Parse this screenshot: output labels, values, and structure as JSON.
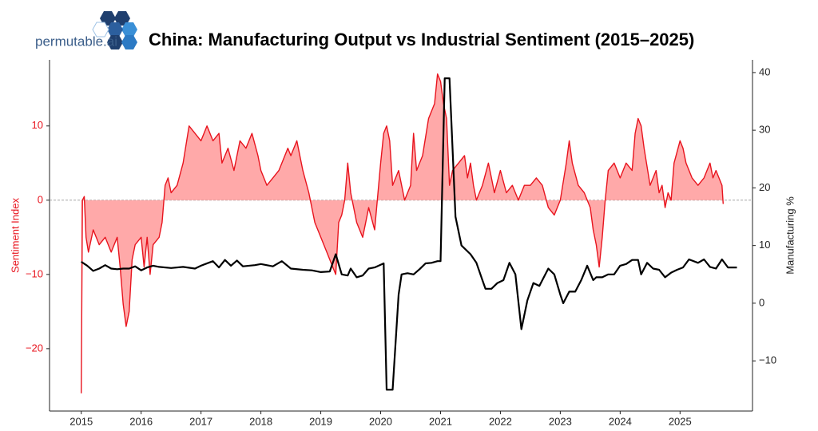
{
  "logo": "permutable.ai",
  "chart_data": {
    "type": "line",
    "title": "China: Manufacturing Output vs Industrial Sentiment (2015–2025)",
    "y_label": "Sentiment Index",
    "y2_label": "Manufacturing %",
    "xlim": [
      2014.47,
      2026.21
    ],
    "xticks": [
      2015,
      2016,
      2017,
      2018,
      2019,
      2020,
      2021,
      2022,
      2023,
      2024,
      2025
    ],
    "ylim": [
      -28.4,
      18.9
    ],
    "yticks": [
      {
        "value": -20,
        "label": "−20"
      },
      {
        "value": -10,
        "label": "−10"
      },
      0,
      10
    ],
    "y2lim": [
      -18.7,
      42.2
    ],
    "y2ticks": [
      {
        "value": -10,
        "label": "−10"
      },
      0,
      10,
      20,
      30,
      40
    ],
    "series": [
      {
        "name": "Sentiment Index",
        "color": "#e8141e",
        "fill": "#ff9a9a",
        "axis": "y",
        "x": [
          2015.0,
          2015.02,
          2015.05,
          2015.08,
          2015.12,
          2015.2,
          2015.3,
          2015.4,
          2015.5,
          2015.6,
          2015.65,
          2015.7,
          2015.75,
          2015.8,
          2015.85,
          2015.9,
          2016.0,
          2016.05,
          2016.1,
          2016.15,
          2016.2,
          2016.3,
          2016.35,
          2016.4,
          2016.45,
          2016.5,
          2016.6,
          2016.7,
          2016.8,
          2016.9,
          2017.0,
          2017.1,
          2017.2,
          2017.3,
          2017.35,
          2017.45,
          2017.55,
          2017.65,
          2017.75,
          2017.85,
          2017.95,
          2018.0,
          2018.1,
          2018.2,
          2018.3,
          2018.4,
          2018.45,
          2018.5,
          2018.6,
          2018.7,
          2018.8,
          2018.9,
          2019.0,
          2019.1,
          2019.2,
          2019.25,
          2019.3,
          2019.35,
          2019.4,
          2019.45,
          2019.5,
          2019.6,
          2019.7,
          2019.75,
          2019.8,
          2019.9,
          2020.0,
          2020.05,
          2020.1,
          2020.15,
          2020.2,
          2020.3,
          2020.4,
          2020.5,
          2020.55,
          2020.6,
          2020.7,
          2020.8,
          2020.9,
          2020.95,
          2021.0,
          2021.05,
          2021.1,
          2021.15,
          2021.2,
          2021.3,
          2021.4,
          2021.45,
          2021.5,
          2021.55,
          2021.6,
          2021.7,
          2021.8,
          2021.85,
          2021.9,
          2022.0,
          2022.1,
          2022.2,
          2022.3,
          2022.4,
          2022.5,
          2022.6,
          2022.7,
          2022.8,
          2022.9,
          2023.0,
          2023.1,
          2023.15,
          2023.2,
          2023.3,
          2023.4,
          2023.5,
          2023.55,
          2023.6,
          2023.65,
          2023.7,
          2023.75,
          2023.8,
          2023.9,
          2024.0,
          2024.1,
          2024.2,
          2024.25,
          2024.3,
          2024.35,
          2024.4,
          2024.5,
          2024.6,
          2024.65,
          2024.7,
          2024.75,
          2024.8,
          2024.85,
          2024.9,
          2025.0,
          2025.05,
          2025.1,
          2025.2,
          2025.3,
          2025.4,
          2025.5,
          2025.55,
          2025.6,
          2025.7,
          2025.72
        ],
        "values": [
          -26,
          0,
          0.5,
          -5,
          -7,
          -4,
          -6,
          -5,
          -7,
          -5,
          -9,
          -14,
          -17,
          -15,
          -8,
          -6,
          -5,
          -9,
          -5,
          -10,
          -6,
          -5,
          -3,
          2,
          3,
          1,
          2,
          5,
          10,
          9,
          8,
          10,
          8,
          9,
          5,
          7,
          4,
          8,
          7,
          9,
          6,
          4,
          2,
          3,
          4,
          6,
          7,
          6,
          8,
          4,
          1,
          -3,
          -5,
          -7,
          -9,
          -10,
          -3,
          -2,
          0,
          5,
          1,
          -3,
          -5,
          -3,
          -1,
          -4,
          5,
          9,
          10,
          8,
          2,
          4,
          0,
          2,
          9,
          4,
          6,
          11,
          13,
          17,
          16,
          13,
          11,
          2,
          4,
          5,
          6,
          3,
          5,
          2,
          0,
          2,
          5,
          3,
          1,
          4,
          1,
          2,
          0,
          2,
          2,
          3,
          2,
          -1,
          -2,
          0,
          5,
          8,
          5,
          2,
          1,
          -1,
          -4,
          -6,
          -9,
          -5,
          0,
          4,
          5,
          3,
          5,
          4,
          9,
          11,
          10,
          7,
          2,
          4,
          1,
          2,
          -1,
          1,
          0,
          5,
          8,
          7,
          5,
          3,
          2,
          3,
          5,
          3,
          4,
          2,
          -0.5
        ]
      },
      {
        "name": "Manufacturing %",
        "color": "#000000",
        "axis": "y2",
        "x": [
          2015.0,
          2015.1,
          2015.2,
          2015.3,
          2015.4,
          2015.5,
          2015.6,
          2015.7,
          2015.8,
          2015.9,
          2016.0,
          2016.1,
          2016.2,
          2016.3,
          2016.5,
          2016.7,
          2016.9,
          2017.0,
          2017.2,
          2017.3,
          2017.4,
          2017.5,
          2017.6,
          2017.7,
          2017.9,
          2018.0,
          2018.2,
          2018.35,
          2018.5,
          2018.7,
          2018.85,
          2019.0,
          2019.15,
          2019.25,
          2019.35,
          2019.45,
          2019.5,
          2019.6,
          2019.7,
          2019.8,
          2019.9,
          2020.05,
          2020.1,
          2020.2,
          2020.3,
          2020.35,
          2020.45,
          2020.55,
          2020.65,
          2020.75,
          2020.85,
          2020.95,
          2021.0,
          2021.07,
          2021.15,
          2021.25,
          2021.35,
          2021.5,
          2021.6,
          2021.7,
          2021.75,
          2021.85,
          2021.95,
          2022.05,
          2022.15,
          2022.25,
          2022.35,
          2022.45,
          2022.55,
          2022.65,
          2022.7,
          2022.8,
          2022.9,
          2023.0,
          2023.05,
          2023.15,
          2023.25,
          2023.35,
          2023.45,
          2023.55,
          2023.6,
          2023.7,
          2023.8,
          2023.9,
          2024.0,
          2024.1,
          2024.2,
          2024.3,
          2024.35,
          2024.45,
          2024.55,
          2024.65,
          2024.75,
          2024.85,
          2024.95,
          2025.05,
          2025.15,
          2025.3,
          2025.4,
          2025.5,
          2025.6,
          2025.7,
          2025.8,
          2025.95
        ],
        "values": [
          7.2,
          6.5,
          5.6,
          6.0,
          6.6,
          6.0,
          5.9,
          6.0,
          6.0,
          6.4,
          5.7,
          6.2,
          6.5,
          6.3,
          6.1,
          6.3,
          6.0,
          6.5,
          7.3,
          6.2,
          7.5,
          6.5,
          7.4,
          6.4,
          6.6,
          6.8,
          6.4,
          7.3,
          6.0,
          5.8,
          5.7,
          5.4,
          5.5,
          8.5,
          5.0,
          4.8,
          6.0,
          4.5,
          4.8,
          6.0,
          6.2,
          6.9,
          -15.0,
          -15.0,
          1.5,
          5.0,
          5.2,
          5.0,
          5.9,
          6.9,
          7.0,
          7.3,
          7.3,
          39.0,
          39.0,
          15.0,
          10.0,
          8.5,
          7.0,
          4.0,
          2.5,
          2.5,
          3.5,
          4.0,
          7.0,
          5.0,
          -4.5,
          0.5,
          3.5,
          3.0,
          4.0,
          6.0,
          5.0,
          1.5,
          0.0,
          2.0,
          2.0,
          4.0,
          6.5,
          4.0,
          4.5,
          4.5,
          5.0,
          5.0,
          6.5,
          6.8,
          7.5,
          7.5,
          5.0,
          7.0,
          6.0,
          5.8,
          4.5,
          5.3,
          5.8,
          6.2,
          7.6,
          7.0,
          7.6,
          6.3,
          6.0,
          7.6,
          6.2,
          6.2
        ]
      }
    ]
  }
}
